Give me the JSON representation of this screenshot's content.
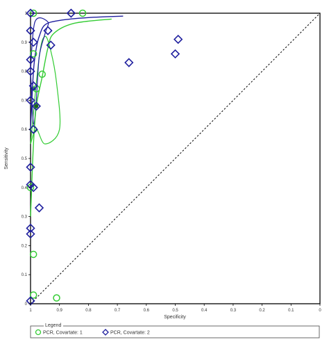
{
  "chart_data": {
    "type": "scatter",
    "title": "",
    "xlabel": "Specificity",
    "ylabel": "Sensitivity",
    "x_reversed": true,
    "xlim": [
      1,
      0
    ],
    "ylim": [
      0,
      1
    ],
    "xticks": [
      "1",
      "0.9",
      "0.8",
      "0.7",
      "0.6",
      "0.5",
      "0.4",
      "0.3",
      "0.2",
      "0.1",
      "0"
    ],
    "yticks": [
      "0",
      "0.1",
      "0.2",
      "0.3",
      "0.4",
      "0.5",
      "0.6",
      "0.7",
      "0.8",
      "0.9",
      "1"
    ],
    "grid": false,
    "legend_title": "Legend",
    "legend_position": "bottom",
    "reference_line": {
      "from": [
        1,
        0
      ],
      "to": [
        0,
        1
      ],
      "style": "dashed",
      "color": "#000000"
    },
    "series": [
      {
        "name": "PCR, Covartate: 1",
        "color": "#33cc33",
        "marker": "circle",
        "points": [
          {
            "x": 0.99,
            "y": 1.0
          },
          {
            "x": 0.82,
            "y": 1.0
          },
          {
            "x": 0.99,
            "y": 0.86
          },
          {
            "x": 0.96,
            "y": 0.79
          },
          {
            "x": 0.98,
            "y": 0.74
          },
          {
            "x": 0.99,
            "y": 0.6
          },
          {
            "x": 1.0,
            "y": 0.4
          },
          {
            "x": 0.99,
            "y": 0.17
          },
          {
            "x": 0.99,
            "y": 0.03
          },
          {
            "x": 0.91,
            "y": 0.02
          }
        ],
        "curve": [
          {
            "x": 1.0,
            "y": 0.3
          },
          {
            "x": 0.99,
            "y": 0.55
          },
          {
            "x": 0.98,
            "y": 0.68
          },
          {
            "x": 0.96,
            "y": 0.78
          },
          {
            "x": 0.94,
            "y": 0.88
          },
          {
            "x": 0.92,
            "y": 0.93
          },
          {
            "x": 0.85,
            "y": 0.965
          },
          {
            "x": 0.72,
            "y": 0.98
          }
        ],
        "confidence_contour": [
          {
            "x": 1.0,
            "y": 0.55
          },
          {
            "x": 0.97,
            "y": 0.85
          },
          {
            "x": 0.95,
            "y": 0.92
          },
          {
            "x": 0.93,
            "y": 0.87
          },
          {
            "x": 0.91,
            "y": 0.76
          },
          {
            "x": 0.9,
            "y": 0.6
          },
          {
            "x": 0.95,
            "y": 0.55
          },
          {
            "x": 0.98,
            "y": 0.6
          },
          {
            "x": 1.0,
            "y": 0.55
          }
        ]
      },
      {
        "name": "PCR, Covartate: 2",
        "color": "#1f1f9e",
        "marker": "diamond",
        "points": [
          {
            "x": 1.0,
            "y": 1.0
          },
          {
            "x": 0.86,
            "y": 1.0
          },
          {
            "x": 1.0,
            "y": 0.94
          },
          {
            "x": 0.94,
            "y": 0.94
          },
          {
            "x": 0.99,
            "y": 0.9
          },
          {
            "x": 0.93,
            "y": 0.89
          },
          {
            "x": 1.0,
            "y": 0.84
          },
          {
            "x": 0.49,
            "y": 0.91
          },
          {
            "x": 0.5,
            "y": 0.86
          },
          {
            "x": 0.66,
            "y": 0.83
          },
          {
            "x": 1.0,
            "y": 0.8
          },
          {
            "x": 0.99,
            "y": 0.75
          },
          {
            "x": 1.0,
            "y": 0.7
          },
          {
            "x": 0.98,
            "y": 0.68
          },
          {
            "x": 0.99,
            "y": 0.6
          },
          {
            "x": 1.0,
            "y": 0.47
          },
          {
            "x": 1.0,
            "y": 0.41
          },
          {
            "x": 0.99,
            "y": 0.4
          },
          {
            "x": 0.97,
            "y": 0.33
          },
          {
            "x": 1.0,
            "y": 0.26
          },
          {
            "x": 1.0,
            "y": 0.24
          },
          {
            "x": 1.0,
            "y": 0.01
          }
        ],
        "curve": [
          {
            "x": 1.0,
            "y": 0.6
          },
          {
            "x": 0.99,
            "y": 0.8
          },
          {
            "x": 0.98,
            "y": 0.88
          },
          {
            "x": 0.97,
            "y": 0.92
          },
          {
            "x": 0.95,
            "y": 0.96
          },
          {
            "x": 0.9,
            "y": 0.975
          },
          {
            "x": 0.8,
            "y": 0.985
          },
          {
            "x": 0.68,
            "y": 0.99
          }
        ],
        "confidence_contour": [
          {
            "x": 1.0,
            "y": 0.8
          },
          {
            "x": 0.985,
            "y": 0.97
          },
          {
            "x": 0.94,
            "y": 0.97
          },
          {
            "x": 0.95,
            "y": 0.93
          },
          {
            "x": 0.97,
            "y": 0.85
          },
          {
            "x": 0.98,
            "y": 0.7
          },
          {
            "x": 0.99,
            "y": 0.62
          },
          {
            "x": 1.0,
            "y": 0.8
          }
        ]
      }
    ]
  }
}
